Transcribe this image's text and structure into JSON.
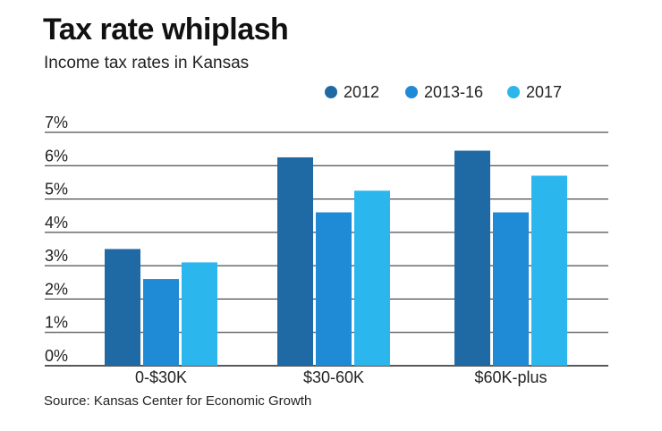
{
  "header": {
    "title": "Tax rate whiplash",
    "subtitle": "Income tax rates in Kansas"
  },
  "footer": {
    "source": "Source: Kansas Center for Economic Growth"
  },
  "colors": {
    "2012": "#1f6aa5",
    "2013-16": "#1f8ad6",
    "2017": "#2bb6ee",
    "grid": "#222222"
  },
  "chart_data": {
    "type": "bar",
    "title": "Tax rate whiplash",
    "subtitle": "Income tax rates in Kansas",
    "categories": [
      "0-$30K",
      "$30-60K",
      "$60K-plus"
    ],
    "series": [
      {
        "name": "2012",
        "values": [
          3.5,
          6.25,
          6.45
        ]
      },
      {
        "name": "2013-16",
        "values": [
          2.6,
          4.6,
          4.6
        ]
      },
      {
        "name": "2017",
        "values": [
          3.1,
          5.25,
          5.7
        ]
      }
    ],
    "yticks": [
      "0%",
      "1%",
      "2%",
      "3%",
      "4%",
      "5%",
      "6%",
      "7%"
    ],
    "ylim": [
      0,
      7
    ],
    "xlabel": "",
    "ylabel": "",
    "grid": true,
    "legend_position": "top-right"
  }
}
